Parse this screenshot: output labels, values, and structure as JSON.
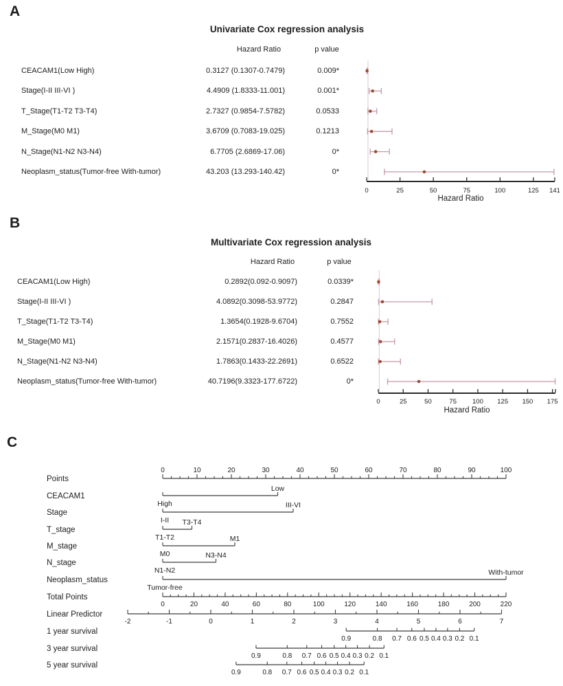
{
  "colors": {
    "text": "#1c1c1c",
    "marker": "#9e4a2e",
    "ci": "#c498ab",
    "reference_line": "#e6d3da",
    "axis": "#2b2b2b",
    "nomogram_line": "#3c3c3c"
  },
  "chart_data": [
    {
      "type": "forest",
      "panel_label": "A",
      "title": "Univariate Cox regression analysis",
      "col_hazard": "Hazard Ratio",
      "col_p": "p value",
      "xlabel": "Hazard Ratio",
      "x_ticks": [
        0,
        25,
        50,
        75,
        100,
        125,
        141
      ],
      "x_max": 141,
      "end_tick": false,
      "ref_value": 1,
      "rows": [
        {
          "label": "CEACAM1(Low High)",
          "hr": "0.3127 (0.1307-0.7479)",
          "p": "0.009*",
          "est": 0.3127,
          "lo": 0.1307,
          "hi": 0.7479
        },
        {
          "label": "Stage(I-II III-VI )",
          "hr": "4.4909 (1.8333-11.001)",
          "p": "0.001*",
          "est": 4.4909,
          "lo": 1.8333,
          "hi": 11.001
        },
        {
          "label": "T_Stage(T1-T2 T3-T4)",
          "hr": "2.7327 (0.9854-7.5782)",
          "p": "0.0533",
          "est": 2.7327,
          "lo": 0.9854,
          "hi": 7.5782
        },
        {
          "label": "M_Stage(M0 M1)",
          "hr": "3.6709 (0.7083-19.025)",
          "p": "0.1213",
          "est": 3.6709,
          "lo": 0.7083,
          "hi": 19.025
        },
        {
          "label": "N_Stage(N1-N2 N3-N4)",
          "hr": "6.7705 (2.6869-17.06)",
          "p": "0*",
          "est": 6.7705,
          "lo": 2.6869,
          "hi": 17.06
        },
        {
          "label": "Neoplasm_status(Tumor-free With-tumor)",
          "hr": "43.203 (13.293-140.42)",
          "p": "0*",
          "est": 43.203,
          "lo": 13.293,
          "hi": 140.42
        }
      ]
    },
    {
      "type": "forest",
      "panel_label": "B",
      "title": "Multivariate Cox regression analysis",
      "col_hazard": "Hazard Ratio",
      "col_p": "p value",
      "xlabel": "Hazard Ratio",
      "x_ticks": [
        0,
        25,
        50,
        75,
        100,
        125,
        150,
        175
      ],
      "x_max": 178,
      "end_tick": true,
      "ref_value": 1,
      "rows": [
        {
          "label": "CEACAM1(Low High)",
          "hr": "0.2892(0.092-0.9097)",
          "p": "0.0339*",
          "est": 0.2892,
          "lo": 0.092,
          "hi": 0.9097
        },
        {
          "label": "Stage(I-II III-VI )",
          "hr": "4.0892(0.3098-53.9772)",
          "p": "0.2847",
          "est": 4.0892,
          "lo": 0.3098,
          "hi": 53.9772
        },
        {
          "label": "T_Stage(T1-T2 T3-T4)",
          "hr": "1.3654(0.1928-9.6704)",
          "p": "0.7552",
          "est": 1.3654,
          "lo": 0.1928,
          "hi": 9.6704
        },
        {
          "label": "M_Stage(M0 M1)",
          "hr": "2.1571(0.2837-16.4026)",
          "p": "0.4577",
          "est": 2.1571,
          "lo": 0.2837,
          "hi": 16.4026
        },
        {
          "label": "N_Stage(N1-N2 N3-N4)",
          "hr": "1.7863(0.1433-22.2691)",
          "p": "0.6522",
          "est": 1.7863,
          "lo": 0.1433,
          "hi": 22.2691
        },
        {
          "label": "Neoplasm_status(Tumor-free With-tumor)",
          "hr": "40.7196(9.3323-177.6722)",
          "p": "0*",
          "est": 40.7196,
          "lo": 9.3323,
          "hi": 177.6722
        }
      ]
    },
    {
      "type": "nomogram",
      "panel_label": "C",
      "rows": [
        {
          "kind": "axis",
          "label": "Points",
          "scale": "points",
          "min": 0,
          "max": 100,
          "step": 10,
          "minor": 2.5,
          "labels": "above"
        },
        {
          "kind": "category",
          "label": "CEACAM1",
          "left": "High",
          "right": "Low",
          "start": 0,
          "end": 33.5
        },
        {
          "kind": "category",
          "label": "Stage",
          "left": "I-II",
          "right": "III-VI",
          "start": 0,
          "end": 38
        },
        {
          "kind": "category",
          "label": "T_stage",
          "left": "T1-T2",
          "right": "T3-T4",
          "start": 0,
          "end": 8.5
        },
        {
          "kind": "category",
          "label": "M_stage",
          "left": "M0",
          "right": "M1",
          "start": 0,
          "end": 21
        },
        {
          "kind": "category",
          "label": "N_stage",
          "left": "N1-N2",
          "right": "N3-N4",
          "start": 0,
          "end": 15.5
        },
        {
          "kind": "category",
          "label": "Neoplasm_status",
          "left": "Tumor-free",
          "right": "With-tumor",
          "start": 0,
          "end": 100
        },
        {
          "kind": "axis",
          "label": "Total Points",
          "scale": "total",
          "min": 0,
          "max": 220,
          "step": 20,
          "minor": 5,
          "labels": "below"
        },
        {
          "kind": "axis",
          "label": "Linear Predictor",
          "scale": "lp",
          "min": -2,
          "max": 7,
          "step": 1,
          "minor": 0.5,
          "labels": "below"
        },
        {
          "kind": "survival",
          "label": "1 year survival",
          "ticks": [
            {
              "t": "0.9",
              "lp": 3.26
            },
            {
              "t": "0.8",
              "lp": 4.01
            },
            {
              "t": "0.7",
              "lp": 4.48
            },
            {
              "t": "0.6",
              "lp": 4.84
            },
            {
              "t": "0.5",
              "lp": 5.14
            },
            {
              "t": "0.4",
              "lp": 5.42
            },
            {
              "t": "0.3",
              "lp": 5.7
            },
            {
              "t": "0.2",
              "lp": 5.99
            },
            {
              "t": "0.1",
              "lp": 6.34
            }
          ]
        },
        {
          "kind": "survival",
          "label": "3 year survival",
          "ticks": [
            {
              "t": "0.9",
              "lp": 1.09
            },
            {
              "t": "0.8",
              "lp": 1.84
            },
            {
              "t": "0.7",
              "lp": 2.31
            },
            {
              "t": "0.6",
              "lp": 2.67
            },
            {
              "t": "0.5",
              "lp": 2.97
            },
            {
              "t": "0.4",
              "lp": 3.25
            },
            {
              "t": "0.3",
              "lp": 3.53
            },
            {
              "t": "0.2",
              "lp": 3.82
            },
            {
              "t": "0.1",
              "lp": 4.17
            }
          ]
        },
        {
          "kind": "survival",
          "label": "5 year survival",
          "ticks": [
            {
              "t": "0.9",
              "lp": 0.61
            },
            {
              "t": "0.8",
              "lp": 1.36
            },
            {
              "t": "0.7",
              "lp": 1.83
            },
            {
              "t": "0.6",
              "lp": 2.19
            },
            {
              "t": "0.5",
              "lp": 2.49
            },
            {
              "t": "0.4",
              "lp": 2.77
            },
            {
              "t": "0.3",
              "lp": 3.05
            },
            {
              "t": "0.2",
              "lp": 3.34
            },
            {
              "t": "0.1",
              "lp": 3.69
            }
          ]
        }
      ]
    }
  ]
}
